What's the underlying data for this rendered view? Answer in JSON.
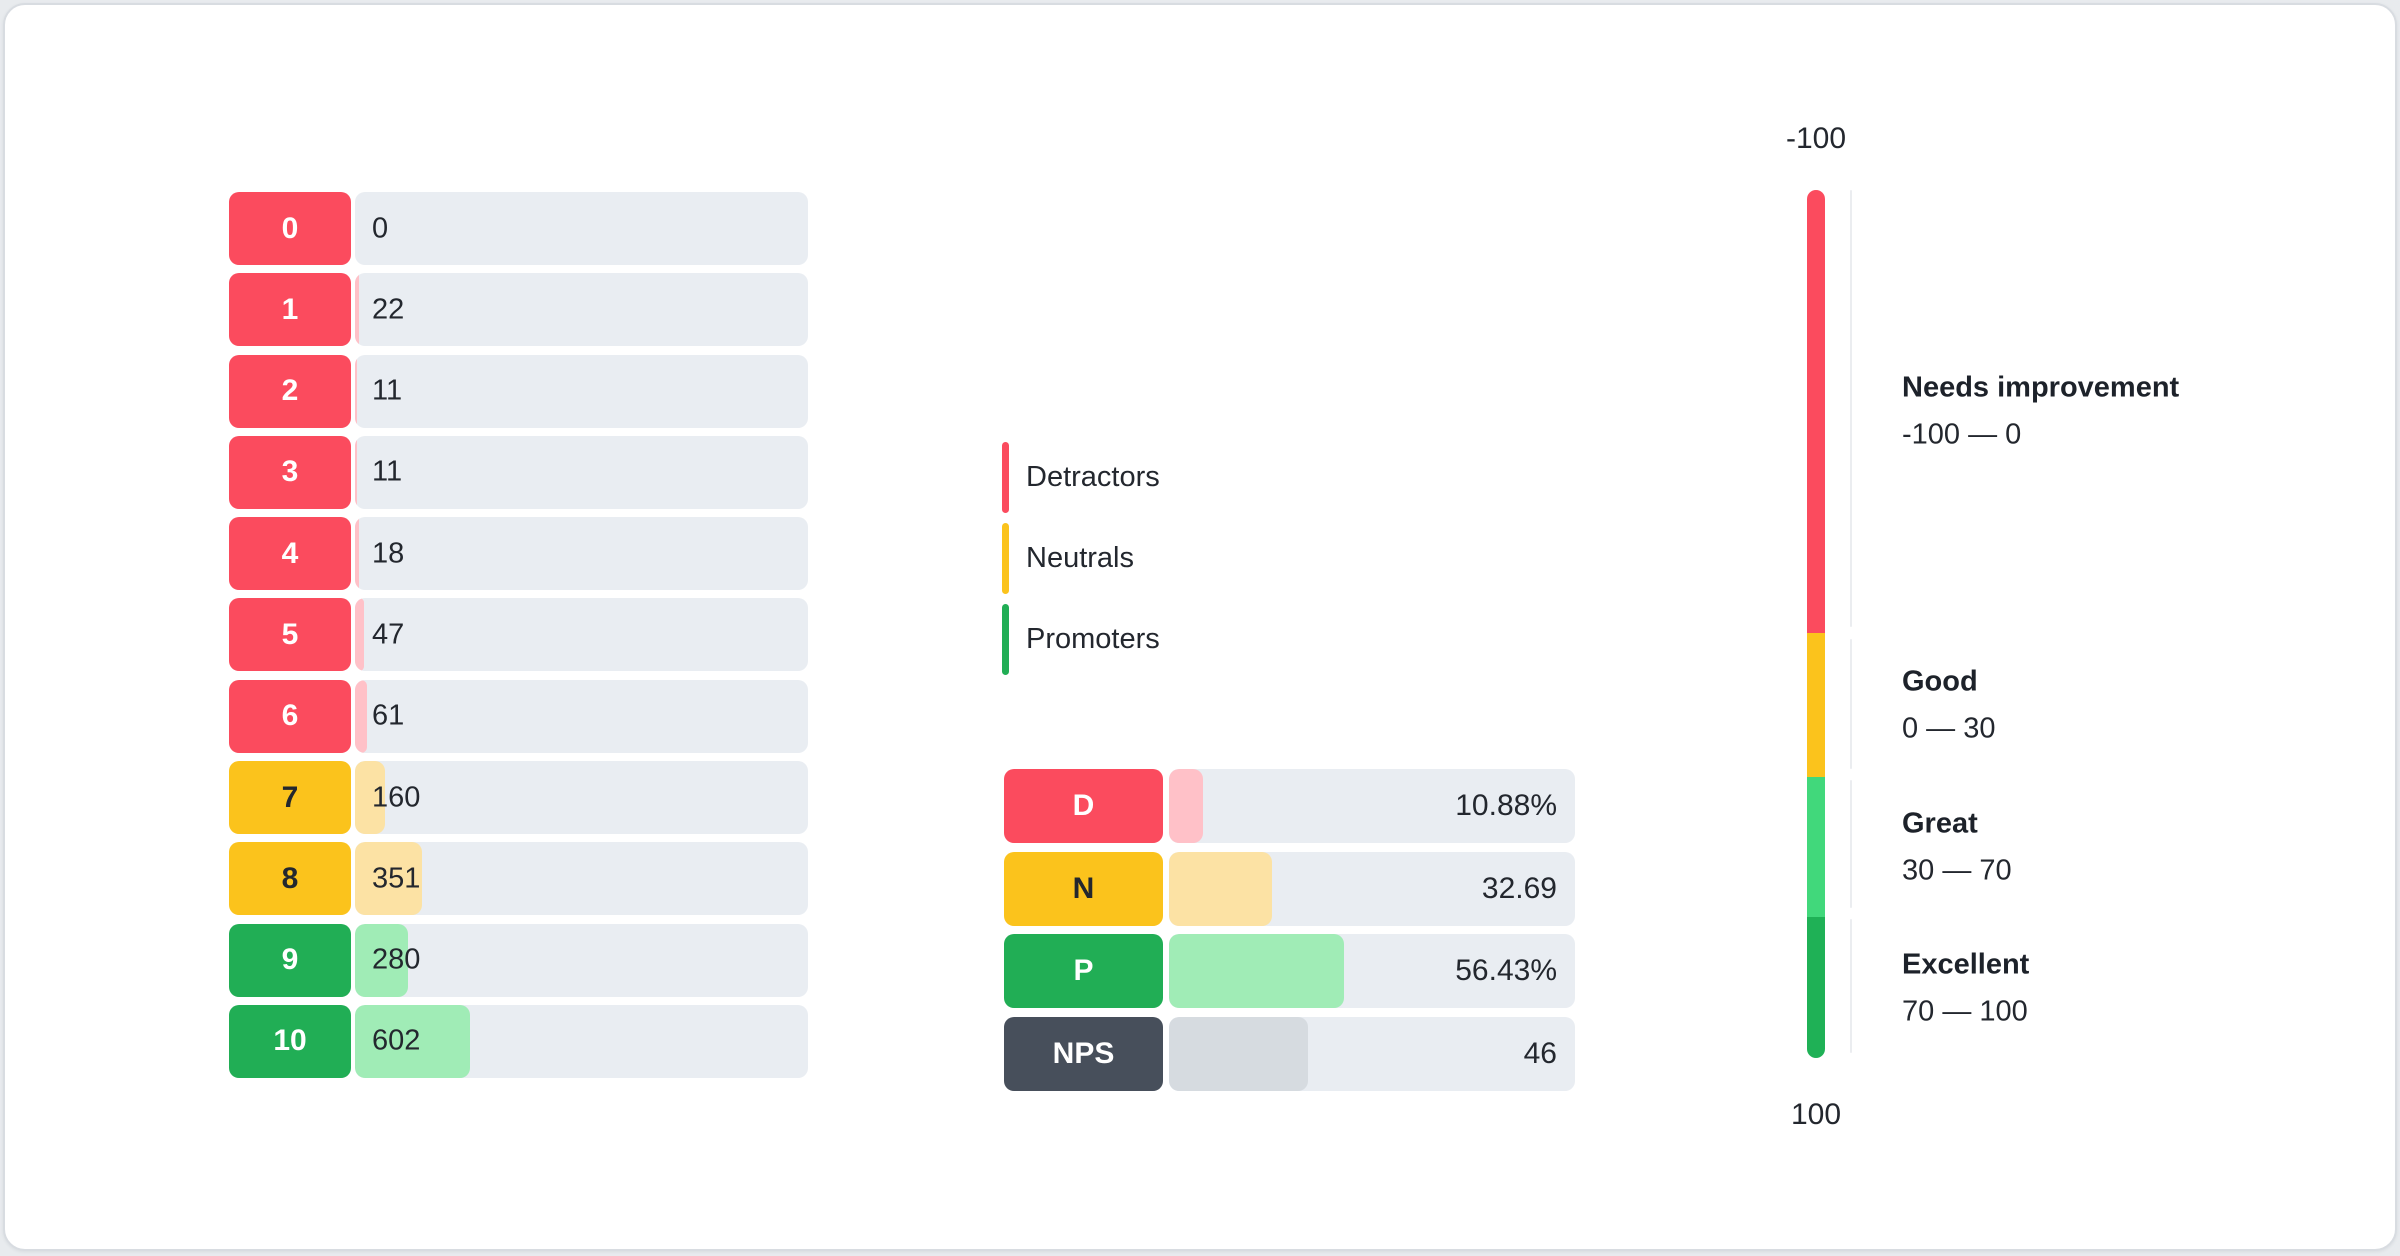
{
  "distribution": {
    "rows": [
      {
        "score": "0",
        "count": "0",
        "group": "detractor",
        "fill_pct": 0
      },
      {
        "score": "1",
        "count": "22",
        "group": "detractor",
        "fill_pct": 0.95
      },
      {
        "score": "2",
        "count": "11",
        "group": "detractor",
        "fill_pct": 0.48
      },
      {
        "score": "3",
        "count": "11",
        "group": "detractor",
        "fill_pct": 0.48
      },
      {
        "score": "4",
        "count": "18",
        "group": "detractor",
        "fill_pct": 0.78
      },
      {
        "score": "5",
        "count": "47",
        "group": "detractor",
        "fill_pct": 2.0
      },
      {
        "score": "6",
        "count": "61",
        "group": "detractor",
        "fill_pct": 2.6
      },
      {
        "score": "7",
        "count": "160",
        "group": "neutral",
        "fill_pct": 6.7
      },
      {
        "score": "8",
        "count": "351",
        "group": "neutral",
        "fill_pct": 14.7
      },
      {
        "score": "9",
        "count": "280",
        "group": "promoter",
        "fill_pct": 11.8
      },
      {
        "score": "10",
        "count": "602",
        "group": "promoter",
        "fill_pct": 25.3
      }
    ]
  },
  "legend": {
    "items": [
      {
        "label": "Detractors",
        "color": "#fb4b5e"
      },
      {
        "label": "Neutrals",
        "color": "#fbc31c"
      },
      {
        "label": "Promoters",
        "color": "#21ae55"
      }
    ]
  },
  "summary": {
    "rows": [
      {
        "key": "D",
        "value": "10.88%",
        "group": "detractor",
        "fill_pct": 8.4
      },
      {
        "key": "N",
        "value": "32.69",
        "group": "neutral",
        "fill_pct": 25.4
      },
      {
        "key": "P",
        "value": "56.43%",
        "group": "promoter",
        "fill_pct": 43.1
      },
      {
        "key": "NPS",
        "value": "46",
        "group": "nps",
        "fill_pct": 34.2
      }
    ]
  },
  "gauge": {
    "top_label": "-100",
    "bottom_label": "100",
    "zones": [
      {
        "name": "Needs improvement",
        "range": "-100 — 0",
        "color": "#fb4b5e",
        "height_pct": 51.0
      },
      {
        "name": "Good",
        "range": "0 — 30",
        "color": "#fbc31c",
        "height_pct": 16.6
      },
      {
        "name": "Great",
        "range": "30 — 70",
        "color": "#41d87b",
        "height_pct": 16.2
      },
      {
        "name": "Excellent",
        "range": "70 — 100",
        "color": "#1fb156",
        "height_pct": 16.2
      }
    ]
  },
  "palette": {
    "detractor": "#fb4b5e",
    "neutral": "#fbc31c",
    "promoter": "#21ae55",
    "nps": "#474f5b",
    "detractor_fill": "#ffc1c8",
    "neutral_fill": "#fce2a4",
    "promoter_fill": "#a0ecb6",
    "nps_fill": "#d6dbe0",
    "track": "#e9edf2"
  },
  "chart_data": [
    {
      "type": "bar",
      "title": "NPS score distribution",
      "orientation": "horizontal",
      "categories": [
        "0",
        "1",
        "2",
        "3",
        "4",
        "5",
        "6",
        "7",
        "8",
        "9",
        "10"
      ],
      "values": [
        0,
        22,
        11,
        11,
        18,
        47,
        61,
        160,
        351,
        280,
        602
      ],
      "group_per_bar": [
        "detractor",
        "detractor",
        "detractor",
        "detractor",
        "detractor",
        "detractor",
        "detractor",
        "neutral",
        "neutral",
        "promoter",
        "promoter"
      ],
      "legend": [
        "Detractors",
        "Neutrals",
        "Promoters"
      ],
      "legend_position": "right",
      "grid": false
    },
    {
      "type": "bar",
      "title": "NPS summary",
      "orientation": "horizontal",
      "categories": [
        "D",
        "N",
        "P",
        "NPS"
      ],
      "values": [
        10.88,
        32.69,
        56.43,
        46
      ],
      "value_labels": [
        "10.88%",
        "32.69",
        "56.43%",
        "46"
      ]
    },
    {
      "type": "gauge",
      "orientation": "vertical",
      "axis_range": [
        -100,
        100
      ],
      "tick_labels": [
        "-100",
        "100"
      ],
      "zones": [
        {
          "label": "Needs improvement",
          "from": -100,
          "to": 0
        },
        {
          "label": "Good",
          "from": 0,
          "to": 30
        },
        {
          "label": "Great",
          "from": 30,
          "to": 70
        },
        {
          "label": "Excellent",
          "from": 70,
          "to": 100
        }
      ]
    }
  ]
}
